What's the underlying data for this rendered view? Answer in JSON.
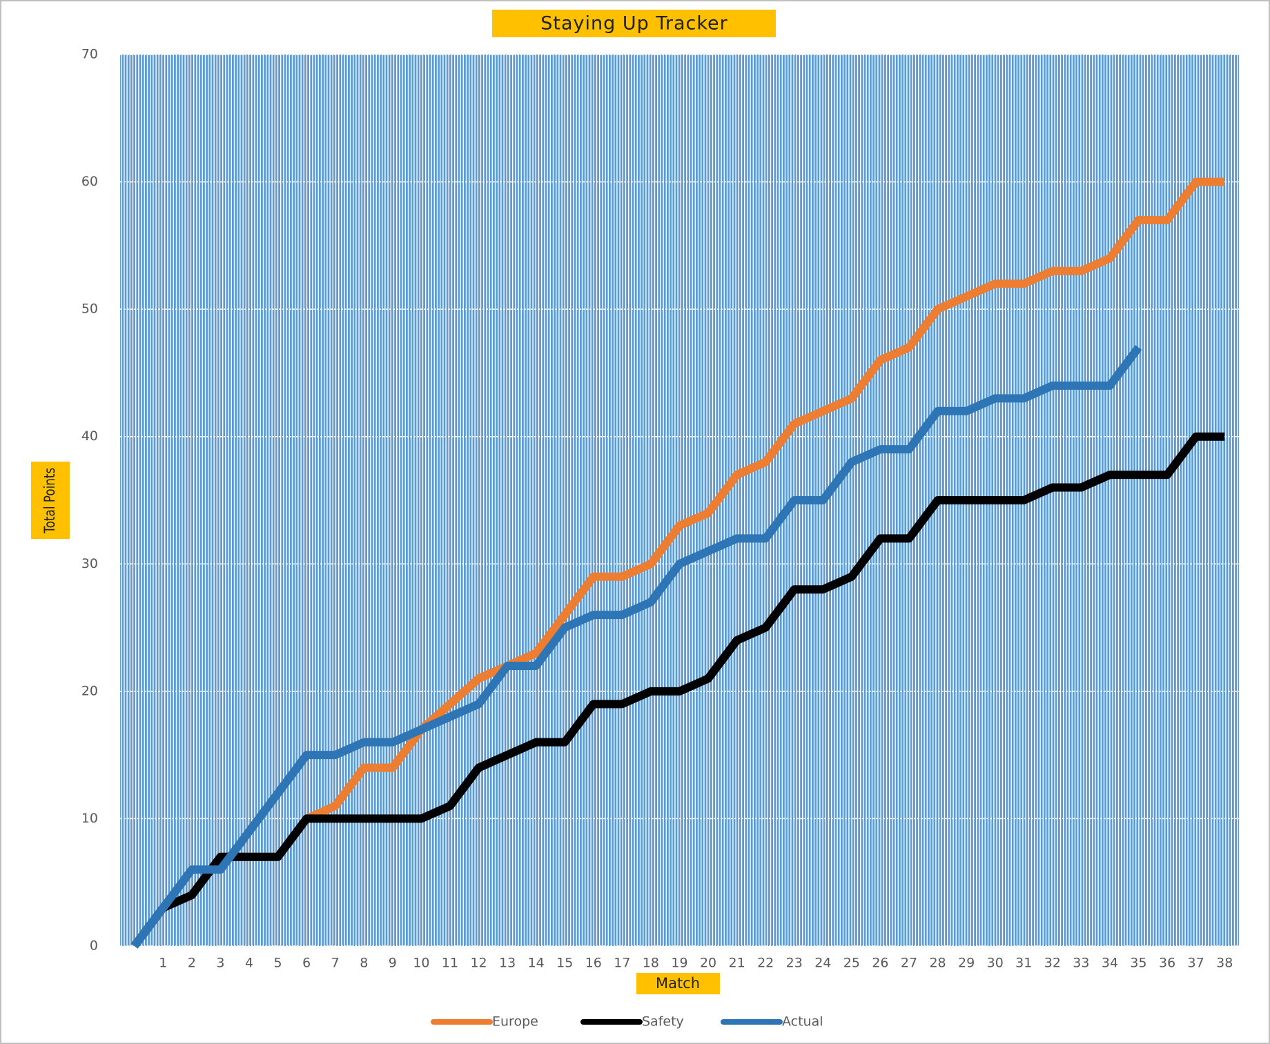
{
  "chart_data": {
    "type": "line",
    "title": "Staying Up Tracker",
    "x_label": "Match",
    "y_label": "Total Points",
    "categories": [
      null,
      "1",
      "2",
      "3",
      "4",
      "5",
      "6",
      "7",
      "8",
      "9",
      "10",
      "11",
      "12",
      "13",
      "14",
      "15",
      "16",
      "17",
      "18",
      "19",
      "20",
      "21",
      "22",
      "23",
      "24",
      "25",
      "26",
      "27",
      "28",
      "29",
      "30",
      "31",
      "32",
      "33",
      "34",
      "35",
      "36",
      "37",
      "38"
    ],
    "series": [
      {
        "name": "Europe",
        "color": "#ed7d31",
        "values": [
          0,
          3,
          4,
          7,
          7,
          7,
          10,
          11,
          14,
          14,
          17,
          19,
          21,
          22,
          23,
          26,
          29,
          29,
          30,
          33,
          34,
          37,
          38,
          41,
          42,
          43,
          46,
          47,
          50,
          51,
          52,
          52,
          53,
          53,
          54,
          57,
          57,
          60,
          60
        ]
      },
      {
        "name": "Safety",
        "color": "#000000",
        "values": [
          0,
          3,
          4,
          7,
          7,
          7,
          10,
          10,
          10,
          10,
          10,
          11,
          14,
          15,
          16,
          16,
          19,
          19,
          20,
          20,
          21,
          24,
          25,
          28,
          28,
          29,
          32,
          32,
          35,
          35,
          35,
          35,
          36,
          36,
          37,
          37,
          37,
          40,
          40
        ]
      },
      {
        "name": "Actual",
        "color": "#2e75b6",
        "values": [
          0,
          3,
          6,
          6,
          9,
          12,
          15,
          15,
          16,
          16,
          17,
          18,
          19,
          22,
          22,
          25,
          26,
          26,
          27,
          30,
          31,
          32,
          32,
          35,
          35,
          38,
          39,
          39,
          42,
          42,
          43,
          43,
          44,
          44,
          44,
          47,
          null,
          null,
          null
        ]
      }
    ],
    "ylim": [
      0,
      70
    ],
    "yticks": [
      0,
      10,
      20,
      30,
      40,
      50,
      60,
      70
    ],
    "grid": true,
    "legend": "bottom"
  }
}
